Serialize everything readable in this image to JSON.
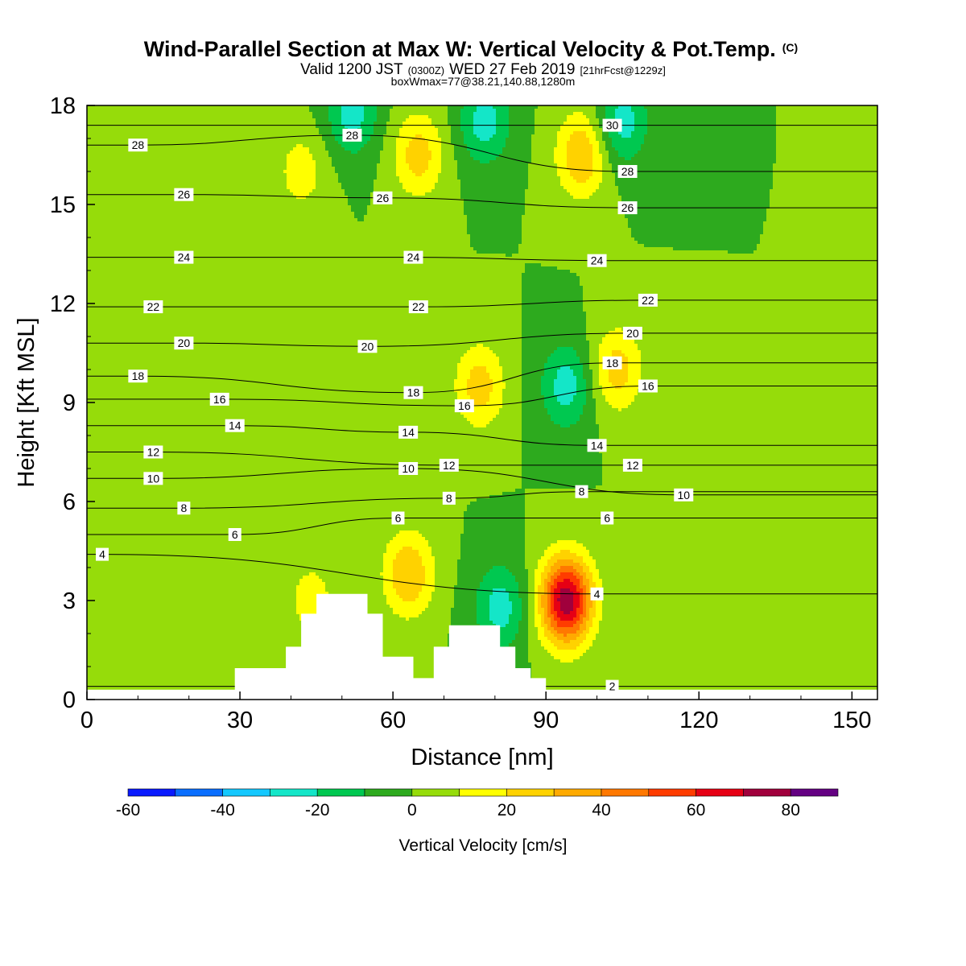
{
  "chart_data": {
    "type": "heatmap",
    "title": "Wind-Parallel Section at Max W: Vertical Velocity & Pot.Temp.",
    "title_mark": "(C)",
    "subtitle_parts": [
      "Valid 1200 JST",
      "(0300Z)",
      "WED 27 Feb 2019",
      "[21hrFcst@1229z]"
    ],
    "subtitle2": "boxWmax=77@38.21,140.88,1280m",
    "xlabel": "Distance [nm]",
    "ylabel": "Height [Kft MSL]",
    "xlim": [
      0,
      155
    ],
    "ylim": [
      0,
      18
    ],
    "xticks": [
      0,
      30,
      60,
      90,
      120,
      150
    ],
    "yticks": [
      0,
      3,
      6,
      9,
      12,
      15,
      18
    ],
    "grid": false,
    "colorbar": {
      "label": "Vertical Velocity [cm/s]",
      "min": -60,
      "step": 10,
      "ticks": [
        -60,
        -40,
        -20,
        0,
        20,
        40,
        60,
        80
      ],
      "colors": [
        "#0a1aff",
        "#0a6eff",
        "#14c8ff",
        "#14e6c8",
        "#00c850",
        "#2daa1e",
        "#96dc0a",
        "#ffff00",
        "#ffd200",
        "#ffaa00",
        "#ff7800",
        "#ff3c00",
        "#e60014",
        "#a0003c",
        "#640082"
      ]
    },
    "vertical_velocity_cm_s": [
      {
        "x": 94,
        "y": 3.0,
        "value": 77
      },
      {
        "x": 97,
        "y": 16.5,
        "value": 30
      },
      {
        "x": 63,
        "y": 3.8,
        "value": 30
      },
      {
        "x": 77,
        "y": 9.5,
        "value": 25
      },
      {
        "x": 104,
        "y": 10.0,
        "value": 25
      },
      {
        "x": 65,
        "y": 16.5,
        "value": 25
      },
      {
        "x": 42,
        "y": 16.0,
        "value": 15
      },
      {
        "x": 44,
        "y": 3.0,
        "value": 15
      },
      {
        "x": 78,
        "y": 17.5,
        "value": -25
      },
      {
        "x": 52,
        "y": 17.8,
        "value": -25
      },
      {
        "x": 105,
        "y": 17.5,
        "value": -25
      },
      {
        "x": 94,
        "y": 9.5,
        "value": -25
      },
      {
        "x": 81,
        "y": 2.8,
        "value": -25
      }
    ],
    "theta_contours": [
      {
        "label": "4",
        "x": 3,
        "y": 4.4
      },
      {
        "label": "6",
        "x": 29,
        "y": 5.0
      },
      {
        "label": "8",
        "x": 19,
        "y": 5.8
      },
      {
        "label": "10",
        "x": 13,
        "y": 6.7
      },
      {
        "label": "12",
        "x": 13,
        "y": 7.5
      },
      {
        "label": "14",
        "x": 29,
        "y": 8.3
      },
      {
        "label": "16",
        "x": 26,
        "y": 9.1
      },
      {
        "label": "18",
        "x": 10,
        "y": 9.8
      },
      {
        "label": "20",
        "x": 19,
        "y": 10.8
      },
      {
        "label": "22",
        "x": 13,
        "y": 11.9
      },
      {
        "label": "24",
        "x": 19,
        "y": 13.4
      },
      {
        "label": "26",
        "x": 19,
        "y": 15.3
      },
      {
        "label": "28",
        "x": 10,
        "y": 16.8
      },
      {
        "label": "28",
        "x": 52,
        "y": 17.1
      },
      {
        "label": "26",
        "x": 58,
        "y": 15.2
      },
      {
        "label": "24",
        "x": 64,
        "y": 13.4
      },
      {
        "label": "22",
        "x": 65,
        "y": 11.9
      },
      {
        "label": "20",
        "x": 55,
        "y": 10.7
      },
      {
        "label": "18",
        "x": 64,
        "y": 9.3
      },
      {
        "label": "16",
        "x": 74,
        "y": 8.9
      },
      {
        "label": "14",
        "x": 63,
        "y": 8.1
      },
      {
        "label": "12",
        "x": 71,
        "y": 7.1
      },
      {
        "label": "10",
        "x": 63,
        "y": 7.0
      },
      {
        "label": "8",
        "x": 71,
        "y": 6.1
      },
      {
        "label": "6",
        "x": 61,
        "y": 5.5
      },
      {
        "label": "30",
        "x": 103,
        "y": 17.4
      },
      {
        "label": "28",
        "x": 106,
        "y": 16.0
      },
      {
        "label": "26",
        "x": 106,
        "y": 14.9
      },
      {
        "label": "24",
        "x": 100,
        "y": 13.3
      },
      {
        "label": "22",
        "x": 110,
        "y": 12.1
      },
      {
        "label": "20",
        "x": 107,
        "y": 11.1
      },
      {
        "label": "18",
        "x": 103,
        "y": 10.2
      },
      {
        "label": "16",
        "x": 110,
        "y": 9.5
      },
      {
        "label": "14",
        "x": 100,
        "y": 7.7
      },
      {
        "label": "12",
        "x": 107,
        "y": 7.1
      },
      {
        "label": "10",
        "x": 117,
        "y": 6.2
      },
      {
        "label": "8",
        "x": 97,
        "y": 6.3
      },
      {
        "label": "6",
        "x": 102,
        "y": 5.5
      },
      {
        "label": "4",
        "x": 100,
        "y": 3.2
      },
      {
        "label": "2",
        "x": 103,
        "y": 0.4
      }
    ],
    "terrain_kft": [
      {
        "x": 0,
        "h": 0.3
      },
      {
        "x": 29,
        "h": 0.3
      },
      {
        "x": 29,
        "h": 0.95
      },
      {
        "x": 39,
        "h": 0.95
      },
      {
        "x": 39,
        "h": 1.6
      },
      {
        "x": 42,
        "h": 1.6
      },
      {
        "x": 42,
        "h": 2.6
      },
      {
        "x": 45,
        "h": 2.6
      },
      {
        "x": 45,
        "h": 3.2
      },
      {
        "x": 55,
        "h": 3.2
      },
      {
        "x": 55,
        "h": 2.6
      },
      {
        "x": 58,
        "h": 2.6
      },
      {
        "x": 58,
        "h": 1.3
      },
      {
        "x": 64,
        "h": 1.3
      },
      {
        "x": 64,
        "h": 0.65
      },
      {
        "x": 68,
        "h": 0.65
      },
      {
        "x": 68,
        "h": 1.6
      },
      {
        "x": 71,
        "h": 1.6
      },
      {
        "x": 71,
        "h": 2.25
      },
      {
        "x": 81,
        "h": 2.25
      },
      {
        "x": 81,
        "h": 1.6
      },
      {
        "x": 84,
        "h": 1.6
      },
      {
        "x": 84,
        "h": 0.95
      },
      {
        "x": 87,
        "h": 0.95
      },
      {
        "x": 87,
        "h": 0.65
      },
      {
        "x": 90,
        "h": 0.65
      },
      {
        "x": 90,
        "h": 0.3
      },
      {
        "x": 155,
        "h": 0.3
      }
    ]
  }
}
